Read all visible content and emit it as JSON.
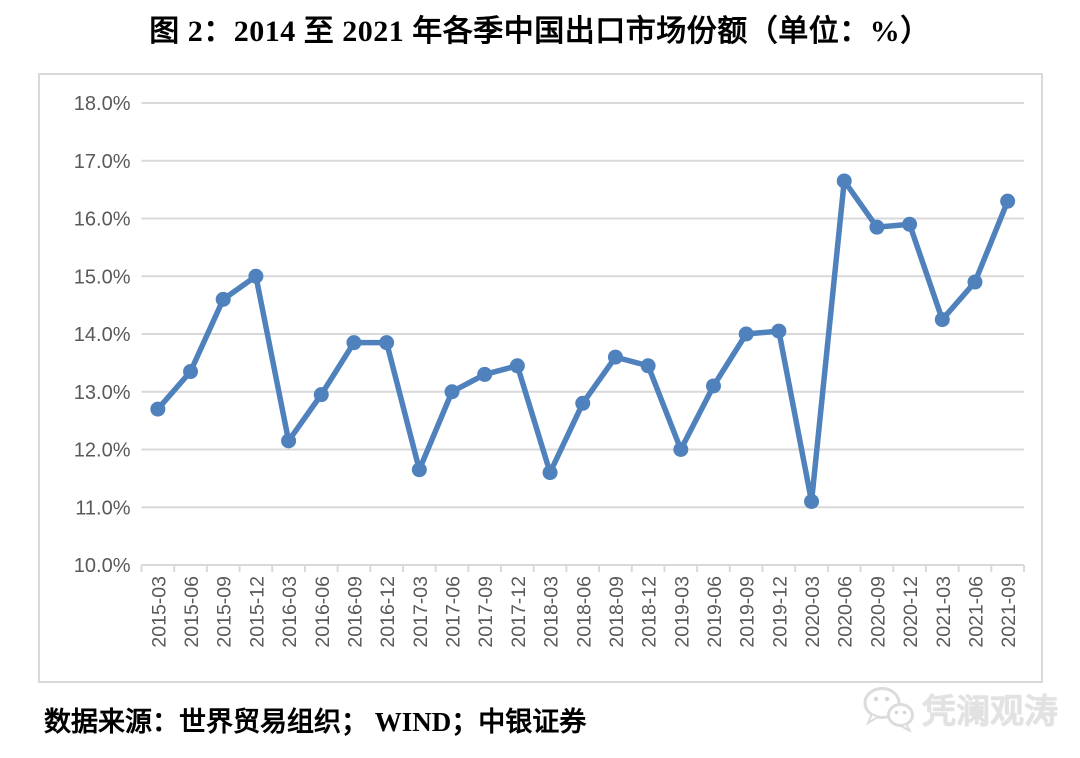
{
  "page": {
    "title": "图 2：2014 至 2021 年各季中国出口市场份额（单位：%）",
    "source": "数据来源：世界贸易组织；  WIND；中银证券",
    "watermark": "凭澜观涛"
  },
  "chart_data": {
    "type": "line",
    "title": "图 2：2014 至 2021 年各季中国出口市场份额（单位：%）",
    "unit": "%",
    "categories": [
      "2015-03",
      "2015-06",
      "2015-09",
      "2015-12",
      "2016-03",
      "2016-06",
      "2016-09",
      "2016-12",
      "2017-03",
      "2017-06",
      "2017-09",
      "2017-12",
      "2018-03",
      "2018-06",
      "2018-09",
      "2018-12",
      "2019-03",
      "2019-06",
      "2019-09",
      "2019-12",
      "2020-03",
      "2020-06",
      "2020-09",
      "2020-12",
      "2021-03",
      "2021-06",
      "2021-09"
    ],
    "values": [
      12.7,
      13.35,
      14.6,
      15.0,
      12.15,
      12.95,
      13.85,
      13.85,
      11.65,
      13.0,
      13.3,
      13.45,
      11.6,
      12.8,
      13.6,
      13.45,
      12.0,
      13.1,
      14.0,
      14.05,
      11.1,
      16.65,
      15.85,
      15.9,
      14.25,
      14.9,
      16.3
    ],
    "ylim": [
      10.0,
      18.0
    ],
    "ytick_step": 1.0,
    "yticks": [
      {
        "label": "18.0%",
        "value": 18.0
      },
      {
        "label": "17.0%",
        "value": 17.0
      },
      {
        "label": "16.0%",
        "value": 16.0
      },
      {
        "label": "15.0%",
        "value": 15.0
      },
      {
        "label": "14.0%",
        "value": 14.0
      },
      {
        "label": "13.0%",
        "value": 13.0
      },
      {
        "label": "12.0%",
        "value": 12.0
      },
      {
        "label": "11.0%",
        "value": 11.0
      },
      {
        "label": "10.0%",
        "value": 10.0
      }
    ],
    "grid": true,
    "legend": "none",
    "marker": "circle",
    "colors": {
      "line": "#4F81BD",
      "gridline": "#D9D9D9",
      "axis_label": "#595959",
      "box_border": "#D9D9D9"
    }
  }
}
